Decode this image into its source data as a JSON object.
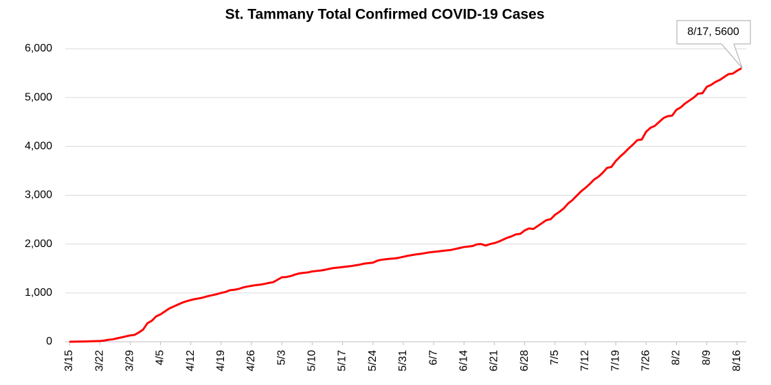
{
  "chart_data": {
    "type": "line",
    "title": "St. Tammany Total Confirmed COVID-19 Cases",
    "annotation": "8/17, 5600",
    "categories": [
      "3/15",
      null,
      null,
      null,
      null,
      null,
      null,
      "3/22",
      null,
      null,
      null,
      null,
      null,
      null,
      "3/29",
      null,
      null,
      null,
      null,
      null,
      null,
      "4/5",
      null,
      null,
      null,
      null,
      null,
      null,
      "4/12",
      null,
      null,
      null,
      null,
      null,
      null,
      "4/19",
      null,
      null,
      null,
      null,
      null,
      null,
      "4/26",
      null,
      null,
      null,
      null,
      null,
      null,
      "5/3",
      null,
      null,
      null,
      null,
      null,
      null,
      "5/10",
      null,
      null,
      null,
      null,
      null,
      null,
      "5/17",
      null,
      null,
      null,
      null,
      null,
      null,
      "5/24",
      null,
      null,
      null,
      null,
      null,
      null,
      "5/31",
      null,
      null,
      null,
      null,
      null,
      null,
      "6/7",
      null,
      null,
      null,
      null,
      null,
      null,
      "6/14",
      null,
      null,
      null,
      null,
      null,
      null,
      "6/21",
      null,
      null,
      null,
      null,
      null,
      null,
      "6/28",
      null,
      null,
      null,
      null,
      null,
      null,
      "7/5",
      null,
      null,
      null,
      null,
      null,
      null,
      "7/12",
      null,
      null,
      null,
      null,
      null,
      null,
      "7/19",
      null,
      null,
      null,
      null,
      null,
      null,
      "7/26",
      null,
      null,
      null,
      null,
      null,
      null,
      "8/2",
      null,
      null,
      null,
      null,
      null,
      null,
      "8/9",
      null,
      null,
      null,
      null,
      null,
      null,
      "8/16",
      null
    ],
    "series": [
      {
        "name": "Total Confirmed Cases",
        "color": "#ff0000",
        "values": [
          1,
          2,
          3,
          5,
          7,
          10,
          12,
          15,
          25,
          40,
          50,
          70,
          90,
          110,
          130,
          140,
          190,
          250,
          380,
          430,
          520,
          560,
          620,
          680,
          720,
          760,
          800,
          830,
          855,
          875,
          890,
          910,
          935,
          955,
          975,
          1000,
          1020,
          1055,
          1065,
          1080,
          1110,
          1130,
          1145,
          1160,
          1170,
          1185,
          1205,
          1220,
          1270,
          1320,
          1325,
          1345,
          1375,
          1400,
          1410,
          1420,
          1440,
          1450,
          1460,
          1475,
          1495,
          1510,
          1520,
          1530,
          1540,
          1550,
          1565,
          1580,
          1600,
          1610,
          1620,
          1660,
          1680,
          1690,
          1700,
          1705,
          1720,
          1740,
          1760,
          1775,
          1790,
          1800,
          1815,
          1830,
          1840,
          1850,
          1860,
          1870,
          1880,
          1900,
          1920,
          1940,
          1950,
          1960,
          1995,
          2000,
          1970,
          2000,
          2020,
          2050,
          2090,
          2130,
          2160,
          2200,
          2210,
          2280,
          2320,
          2310,
          2370,
          2430,
          2490,
          2510,
          2600,
          2660,
          2730,
          2830,
          2900,
          2990,
          3080,
          3150,
          3230,
          3320,
          3380,
          3460,
          3560,
          3580,
          3700,
          3790,
          3870,
          3960,
          4040,
          4130,
          4140,
          4300,
          4380,
          4420,
          4500,
          4580,
          4620,
          4630,
          4750,
          4800,
          4880,
          4940,
          5000,
          5080,
          5090,
          5220,
          5260,
          5320,
          5360,
          5420,
          5480,
          5490,
          5550,
          5600
        ]
      }
    ],
    "ylim": [
      0,
      6000
    ],
    "yticks": [
      0,
      {
        "value": 1000,
        "label": "1,000"
      },
      {
        "value": 2000,
        "label": "2,000"
      },
      {
        "value": 3000,
        "label": "3,000"
      },
      {
        "value": 4000,
        "label": "4,000"
      },
      {
        "value": 5000,
        "label": "5,000"
      },
      {
        "value": 6000,
        "label": "6,000"
      }
    ],
    "grid": true
  }
}
